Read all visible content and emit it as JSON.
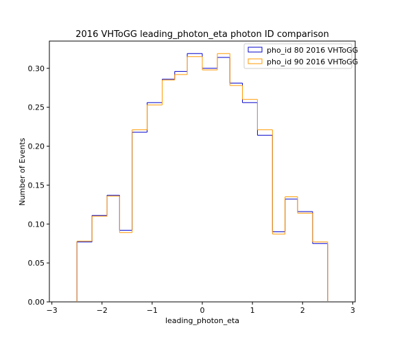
{
  "chart_data": {
    "type": "step",
    "title": "2016 VHToGG leading_photon_eta photon ID comparison",
    "xlabel": "leading_photon_eta",
    "ylabel": "Number of Events",
    "xlim": [
      -3.05,
      3.05
    ],
    "ylim": [
      0,
      0.335
    ],
    "xticks": [
      -3,
      -2,
      -1,
      0,
      1,
      2,
      3
    ],
    "xtick_labels": [
      "−3",
      "−2",
      "−1",
      "0",
      "1",
      "2",
      "3"
    ],
    "yticks": [
      0.0,
      0.05,
      0.1,
      0.15,
      0.2,
      0.25,
      0.3
    ],
    "ytick_labels": [
      "0.00",
      "0.05",
      "0.10",
      "0.15",
      "0.20",
      "0.25",
      "0.30"
    ],
    "grid": false,
    "legend_position": "top-right",
    "bin_edges": [
      -2.5,
      -2.2,
      -1.9,
      -1.65,
      -1.4,
      -1.1,
      -0.8,
      -0.55,
      -0.3,
      0.0,
      0.3,
      0.55,
      0.8,
      1.1,
      1.4,
      1.65,
      1.9,
      2.2,
      2.5
    ],
    "series": [
      {
        "name": "pho_id 80 2016 VHToGG",
        "color": "#0000cc",
        "values": [
          0.077,
          0.111,
          0.137,
          0.092,
          0.218,
          0.256,
          0.286,
          0.296,
          0.319,
          0.3,
          0.314,
          0.281,
          0.256,
          0.214,
          0.09,
          0.132,
          0.116,
          0.075
        ]
      },
      {
        "name": "pho_id 90 2016 VHToGG",
        "color": "#ff9900",
        "values": [
          0.078,
          0.11,
          0.136,
          0.089,
          0.221,
          0.253,
          0.285,
          0.292,
          0.315,
          0.298,
          0.319,
          0.278,
          0.26,
          0.221,
          0.087,
          0.135,
          0.114,
          0.077
        ]
      }
    ]
  }
}
